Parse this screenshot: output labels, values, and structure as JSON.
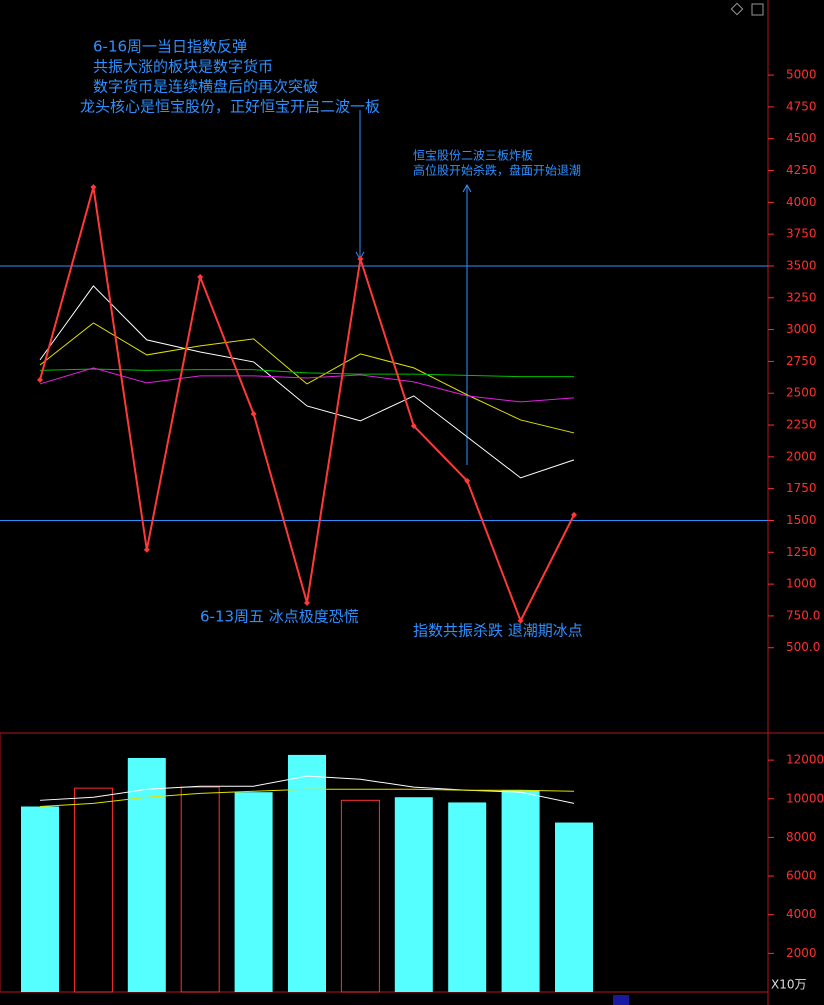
{
  "chart_data": [
    {
      "type": "line",
      "categories": [
        null,
        null,
        null,
        null,
        null,
        null,
        null,
        null,
        null,
        null,
        null
      ],
      "series": [
        {
          "color": "#ffffff",
          "width": 1,
          "values": [
            2762,
            3343,
            2919,
            2824,
            2746,
            2400,
            2283,
            2479,
            2157,
            1835,
            1976
          ]
        },
        {
          "color": "#e0e000",
          "width": 1,
          "values": [
            2722,
            3052,
            2801,
            2872,
            2927,
            2573,
            2809,
            2699,
            2487,
            2290,
            2188
          ]
        },
        {
          "color": "#00c000",
          "width": 1,
          "values": [
            2680,
            2690,
            2680,
            2685,
            2685,
            2660,
            2650,
            2650,
            2640,
            2630,
            2630
          ]
        },
        {
          "color": "#e020e0",
          "width": 1,
          "values": [
            2573,
            2699,
            2581,
            2636,
            2636,
            2620,
            2644,
            2589,
            2479,
            2432,
            2463
          ]
        },
        {
          "color": "#ff3838",
          "width": 2,
          "markers": true,
          "values": [
            2605,
            4120,
            1270,
            3413,
            2338,
            853,
            3555,
            2243,
            1811,
            712,
            1544
          ]
        }
      ],
      "hlines": [
        3500,
        1500
      ],
      "hline_color": "#2f8fff",
      "ylim": [
        -170,
        5590
      ],
      "yticks": [
        5000,
        4750,
        4500,
        4250,
        4000,
        3750,
        3500,
        3250,
        3000,
        2750,
        2500,
        2250,
        2000,
        1750,
        1500,
        1250,
        1000,
        {
          "value": 750,
          "label": "750.0"
        },
        {
          "value": 500,
          "label": "500.0"
        }
      ],
      "annotations": [
        "6-16周一当日指数反弹",
        "共振大涨的板块是数字货币",
        "数字货币是连续横盘后的再次突破",
        "龙头核心是恒宝股份，正好恒宝开启二波一板",
        "恒宝股份二波三板炸板",
        "高位股开始杀跌，盘面开始退潮",
        "6-13周五 冰点极度恐慌",
        "指数共振杀跌 退潮期冰点"
      ]
    },
    {
      "type": "bar",
      "categories": [
        null,
        null,
        null,
        null,
        null,
        null,
        null,
        null,
        null,
        null,
        null
      ],
      "values": [
        9600,
        10550,
        12110,
        10600,
        10340,
        12270,
        9920,
        10080,
        9810,
        10440,
        8770
      ],
      "filled": [
        true,
        false,
        true,
        false,
        true,
        true,
        false,
        true,
        true,
        true,
        true
      ],
      "fill_color": "#55ffff",
      "outline_color": "#ff3030",
      "series": [
        {
          "color": "#ffffff",
          "values": [
            9920,
            10080,
            10490,
            10650,
            10650,
            11170,
            11010,
            10600,
            10440,
            10340,
            9760
          ]
        },
        {
          "color": "#e0e000",
          "values": [
            9600,
            9760,
            10080,
            10280,
            10390,
            10490,
            10490,
            10490,
            10440,
            10440,
            10390
          ]
        }
      ],
      "ylim": [
        0,
        13300
      ],
      "yticks": [
        12000,
        10000,
        8000,
        6000,
        4000,
        2000
      ],
      "unit": "X10万"
    }
  ]
}
